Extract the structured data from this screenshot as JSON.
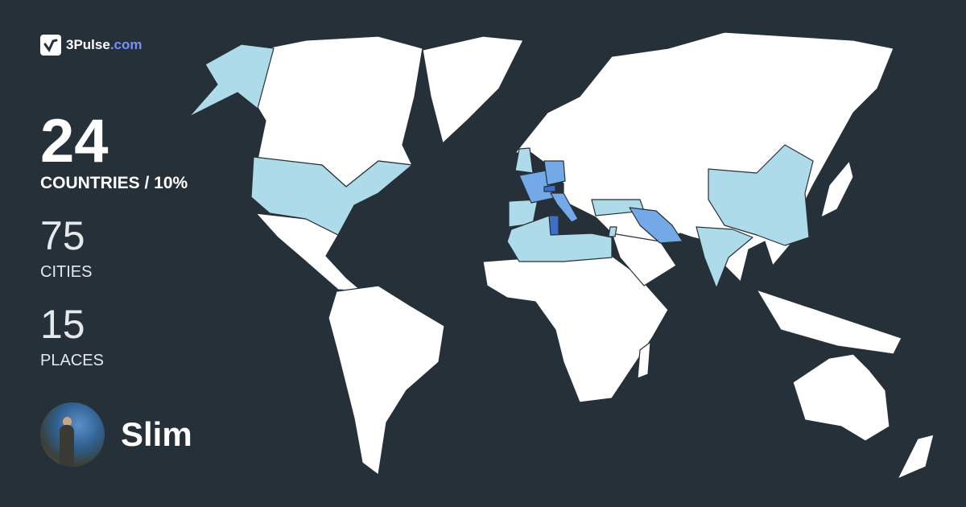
{
  "brand": {
    "name": "3Pulse",
    "tld": ".com"
  },
  "stats": {
    "countries": {
      "value": "24",
      "label": "COUNTRIES / 10%"
    },
    "cities": {
      "value": "75",
      "label": "CITIES"
    },
    "places": {
      "value": "15",
      "label": "PLACES"
    }
  },
  "user": {
    "name": "Slim"
  },
  "colors": {
    "background": "#263039",
    "unvisited": "#ffffff",
    "visited_low": "#aedbea",
    "visited_mid": "#74a9e8",
    "visited_high": "#3d6fc6"
  }
}
